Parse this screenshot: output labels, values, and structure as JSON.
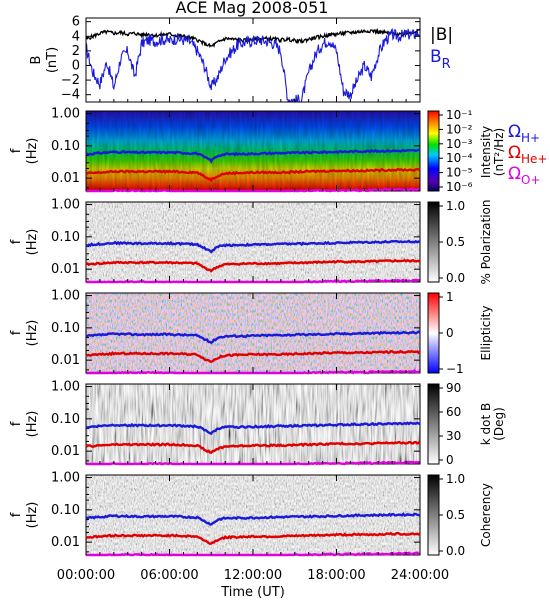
{
  "title": "ACE Mag 2008-051",
  "colors": {
    "B_total": "#000000",
    "B_R": "#1a1ad9",
    "omega_H": "#1a1ad9",
    "omega_He": "#e00000",
    "omega_O": "#e000e0"
  },
  "chart_data": [
    {
      "type": "line",
      "panel": "B",
      "ylabel": "B (nT)",
      "ylabel_line1": "B",
      "ylabel_line2": "(nT)",
      "ylim": [
        -5,
        6.5
      ],
      "yticks": [
        -4,
        -2,
        0,
        2,
        4,
        6
      ],
      "ytick_labels": [
        "−4",
        "−2",
        "0",
        "2",
        "4",
        "6"
      ],
      "xlim": [
        0,
        24
      ],
      "series": [
        {
          "name": "|B|",
          "x": [
            0,
            0.5,
            1,
            1.5,
            2,
            2.5,
            3,
            3.5,
            4,
            4.5,
            5,
            5.5,
            6,
            6.5,
            7,
            7.5,
            8,
            8.5,
            9,
            9.5,
            10,
            10.5,
            11,
            11.5,
            12,
            12.5,
            13,
            13.5,
            14,
            14.5,
            15,
            15.5,
            16,
            16.5,
            17,
            17.5,
            18,
            18.5,
            19,
            19.5,
            20,
            20.5,
            21,
            21.5,
            22,
            22.5,
            23,
            23.5,
            24
          ],
          "y": [
            3.6,
            4.0,
            4.4,
            4.6,
            4.4,
            4.5,
            4.3,
            4.4,
            4.2,
            4.3,
            4.1,
            4.2,
            4.3,
            4.1,
            4.0,
            3.8,
            3.5,
            3.0,
            2.6,
            3.2,
            3.7,
            3.6,
            3.5,
            3.4,
            3.5,
            3.6,
            3.7,
            3.6,
            3.5,
            3.6,
            3.4,
            3.3,
            3.6,
            3.8,
            4.0,
            4.2,
            4.3,
            4.4,
            4.5,
            4.6,
            4.7,
            4.8,
            4.6,
            4.5,
            4.4,
            4.3,
            4.4,
            4.6,
            4.8
          ]
        },
        {
          "name": "B_R",
          "x": [
            0,
            0.5,
            1,
            1.5,
            2,
            2.5,
            3,
            3.5,
            4,
            4.5,
            5,
            5.5,
            6,
            6.5,
            7,
            7.5,
            8,
            8.5,
            9,
            9.5,
            10,
            10.5,
            11,
            11.5,
            12,
            12.5,
            13,
            13.5,
            14,
            14.5,
            15,
            15.5,
            16,
            16.5,
            17,
            17.5,
            18,
            18.5,
            19,
            19.5,
            20,
            20.5,
            21,
            21.5,
            22,
            22.5,
            23,
            23.5,
            24
          ],
          "y": [
            2.5,
            -1.0,
            -2.5,
            0.5,
            -3.0,
            1.0,
            2.0,
            -1.5,
            3.0,
            3.5,
            3.3,
            3.6,
            3.4,
            3.7,
            3.5,
            3.2,
            2.0,
            0.0,
            -3.0,
            -1.5,
            1.0,
            2.0,
            3.0,
            3.2,
            3.4,
            3.5,
            3.3,
            3.0,
            2.0,
            -4.5,
            -4.8,
            -4.6,
            -1.0,
            1.5,
            3.0,
            3.5,
            2.0,
            -3.5,
            -4.0,
            -2.0,
            0.0,
            -1.5,
            1.5,
            3.5,
            4.2,
            4.0,
            4.3,
            4.2,
            4.5
          ]
        }
      ],
      "legend": [
        {
          "label": "|B|",
          "color": "#000000"
        },
        {
          "label": "B",
          "subscript": "R",
          "color": "#1a1ad9"
        }
      ]
    },
    {
      "type": "heatmap",
      "panel": "intensity",
      "ylabel": "f (Hz)",
      "yscale": "log",
      "ylim": [
        0.004,
        1.2
      ],
      "yticks": [
        1.0,
        0.1,
        0.01
      ],
      "ytick_labels": [
        "1.00",
        "0.10",
        "0.01"
      ],
      "colormap": "rainbow",
      "colorbar_label": "Intensity (nT²/Hz)",
      "colorbar_title": "Intensity",
      "colorbar_unit": "(nT²/Hz)",
      "colorbar_ticks": [
        "10⁻¹",
        "10⁻²",
        "10⁻³",
        "10⁻⁴",
        "10⁻⁵",
        "10⁻⁶"
      ],
      "cyclotron_legend": [
        {
          "label": "Ω",
          "subscript": "H+",
          "color": "#1a1ad9"
        },
        {
          "label": "Ω",
          "subscript": "He+",
          "color": "#e00000"
        },
        {
          "label": "Ω",
          "subscript": "O+",
          "color": "#e000e0"
        }
      ]
    },
    {
      "type": "heatmap",
      "panel": "polarization",
      "ylabel": "f (Hz)",
      "yscale": "log",
      "colormap": "gray",
      "colorbar_label": "% Polarization",
      "colorbar_ticks": [
        "1.0",
        "0.5",
        "0.0"
      ]
    },
    {
      "type": "heatmap",
      "panel": "ellipticity",
      "ylabel": "f (Hz)",
      "yscale": "log",
      "colormap": "blue-white-red",
      "colorbar_label": "Ellipticity",
      "colorbar_ticks": [
        "1",
        "0",
        "−1"
      ]
    },
    {
      "type": "heatmap",
      "panel": "kdotb",
      "ylabel": "f (Hz)",
      "yscale": "log",
      "colormap": "gray",
      "colorbar_label": "k dot B (Deg)",
      "colorbar_title": "k dot B",
      "colorbar_unit": "(Deg)",
      "colorbar_ticks": [
        "90",
        "60",
        "30",
        "0"
      ]
    },
    {
      "type": "heatmap",
      "panel": "coherency",
      "ylabel": "f (Hz)",
      "yscale": "log",
      "colormap": "gray",
      "colorbar_label": "Coherency",
      "colorbar_ticks": [
        "1.0",
        "0.5",
        "0.0"
      ]
    }
  ],
  "cyclotron_frequencies": {
    "x": [
      0,
      2,
      4,
      6,
      8,
      8.5,
      9,
      9.5,
      10,
      12,
      14,
      16,
      18,
      20,
      22,
      24
    ],
    "H_plus": [
      0.055,
      0.065,
      0.062,
      0.063,
      0.058,
      0.045,
      0.035,
      0.05,
      0.055,
      0.057,
      0.06,
      0.062,
      0.065,
      0.068,
      0.07,
      0.072
    ],
    "He_plus": [
      0.014,
      0.016,
      0.016,
      0.016,
      0.015,
      0.011,
      0.009,
      0.012,
      0.014,
      0.015,
      0.015,
      0.016,
      0.017,
      0.017,
      0.018,
      0.018
    ],
    "O_plus": [
      0.0035,
      0.004,
      0.004,
      0.004,
      0.0038,
      0.003,
      0.0025,
      0.003,
      0.0035,
      0.0038,
      0.0038,
      0.004,
      0.0042,
      0.0042,
      0.0044,
      0.0045
    ]
  },
  "x_axis": {
    "label": "Time (UT)",
    "xlim": [
      0,
      24
    ],
    "ticks": [
      0,
      6,
      12,
      18,
      24
    ],
    "tick_labels": [
      "00:00:00",
      "06:00:00",
      "12:00:00",
      "18:00:00",
      "24:00:00"
    ]
  },
  "ylabel_f_line1": "f",
  "ylabel_f_line2": "(Hz)"
}
